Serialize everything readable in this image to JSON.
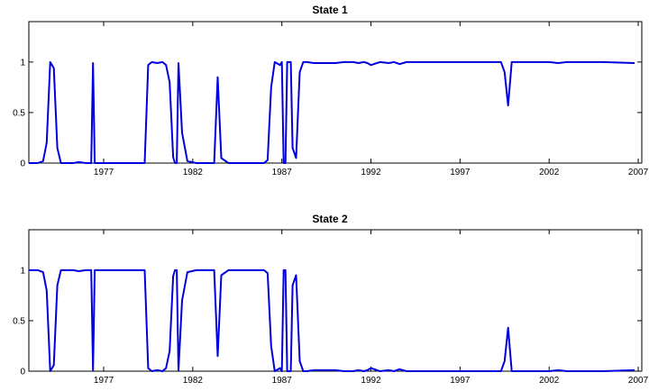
{
  "chart_data": [
    {
      "type": "line",
      "title": "State 1",
      "xlim": [
        1972.8,
        2007.2
      ],
      "ylim": [
        0,
        1.4
      ],
      "xticks": [
        1977,
        1982,
        1987,
        1992,
        1997,
        2002,
        2007
      ],
      "xtick_labels": [
        "1977",
        "1982",
        "1987",
        "1992",
        "1997",
        "2002",
        "2007"
      ],
      "yticks": [
        0,
        0.5,
        1
      ],
      "ytick_labels": [
        "0",
        "0.5",
        "1"
      ],
      "grid": false,
      "series": [
        {
          "color": "#0000dd",
          "x": [
            1972.8,
            1973.3,
            1973.6,
            1973.8,
            1974.0,
            1974.2,
            1974.4,
            1974.6,
            1974.9,
            1975.3,
            1975.6,
            1976.0,
            1976.3,
            1976.4,
            1976.5,
            1976.6,
            1977.0,
            1978.0,
            1979.3,
            1979.5,
            1979.7,
            1980.0,
            1980.3,
            1980.5,
            1980.7,
            1980.9,
            1981.0,
            1981.1,
            1981.2,
            1981.4,
            1981.7,
            1982.2,
            1982.6,
            1983.0,
            1983.2,
            1983.4,
            1983.6,
            1984.0,
            1985.0,
            1986.0,
            1986.2,
            1986.4,
            1986.6,
            1986.9,
            1987.0,
            1987.1,
            1987.2,
            1987.3,
            1987.5,
            1987.6,
            1987.8,
            1988.0,
            1988.2,
            1988.4,
            1988.8,
            1990.0,
            1990.5,
            1991.0,
            1991.3,
            1991.6,
            1991.8,
            1992.0,
            1992.5,
            1993.0,
            1993.3,
            1993.6,
            1994.0,
            1996.0,
            1998.0,
            1999.3,
            1999.5,
            1999.7,
            1999.9,
            2000.0,
            2001.0,
            2002.0,
            2002.5,
            2003.0,
            2005.0,
            2006.8
          ],
          "y": [
            0,
            0,
            0.02,
            0.2,
            1.0,
            0.94,
            0.15,
            0,
            0,
            0,
            0.01,
            0,
            0,
            0.99,
            0,
            0,
            0,
            0,
            0,
            0.97,
            1.0,
            0.99,
            1.0,
            0.97,
            0.8,
            0.06,
            0,
            0,
            0.99,
            0.3,
            0.02,
            0,
            0,
            0,
            0,
            0.85,
            0.05,
            0,
            0,
            0,
            0.03,
            0.75,
            1.0,
            0.97,
            1.0,
            0,
            0,
            1.0,
            1.0,
            0.15,
            0.05,
            0.9,
            1.0,
            1.0,
            0.99,
            0.99,
            1.0,
            1.0,
            0.99,
            1.0,
            0.99,
            0.97,
            1.0,
            0.99,
            1.0,
            0.98,
            1.0,
            1.0,
            1.0,
            1.0,
            0.9,
            0.57,
            1.0,
            1.0,
            1.0,
            1.0,
            0.99,
            1.0,
            1.0,
            0.99
          ]
        }
      ]
    },
    {
      "type": "line",
      "title": "State 2",
      "xlim": [
        1972.8,
        2007.2
      ],
      "ylim": [
        0,
        1.4
      ],
      "xticks": [
        1977,
        1982,
        1987,
        1992,
        1997,
        2002,
        2007
      ],
      "xtick_labels": [
        "1977",
        "1982",
        "1987",
        "1992",
        "1997",
        "2002",
        "2007"
      ],
      "yticks": [
        0,
        0.5,
        1
      ],
      "ytick_labels": [
        "0",
        "0.5",
        "1"
      ],
      "grid": false,
      "series": [
        {
          "color": "#0000dd",
          "x": [
            1972.8,
            1973.3,
            1973.6,
            1973.8,
            1974.0,
            1974.2,
            1974.4,
            1974.6,
            1974.9,
            1975.3,
            1975.6,
            1976.0,
            1976.3,
            1976.4,
            1976.5,
            1976.6,
            1977.0,
            1978.0,
            1979.3,
            1979.5,
            1979.7,
            1980.0,
            1980.3,
            1980.5,
            1980.7,
            1980.9,
            1981.0,
            1981.1,
            1981.2,
            1981.4,
            1981.7,
            1982.2,
            1982.6,
            1983.0,
            1983.2,
            1983.4,
            1983.6,
            1984.0,
            1985.0,
            1986.0,
            1986.2,
            1986.4,
            1986.6,
            1986.9,
            1987.0,
            1987.1,
            1987.2,
            1987.3,
            1987.5,
            1987.6,
            1987.8,
            1988.0,
            1988.2,
            1988.4,
            1988.8,
            1990.0,
            1990.5,
            1991.0,
            1991.3,
            1991.6,
            1991.8,
            1992.0,
            1992.5,
            1993.0,
            1993.3,
            1993.6,
            1994.0,
            1996.0,
            1998.0,
            1999.3,
            1999.5,
            1999.7,
            1999.9,
            2000.0,
            2001.0,
            2002.0,
            2002.5,
            2003.0,
            2005.0,
            2006.8
          ],
          "y": [
            1.0,
            1.0,
            0.98,
            0.8,
            0,
            0.06,
            0.85,
            1.0,
            1.0,
            1.0,
            0.99,
            1.0,
            1.0,
            0.01,
            1.0,
            1.0,
            1.0,
            1.0,
            1.0,
            0.03,
            0,
            0.01,
            0,
            0.03,
            0.2,
            0.94,
            1.0,
            1.0,
            0.01,
            0.7,
            0.98,
            1.0,
            1.0,
            1.0,
            1.0,
            0.15,
            0.95,
            1.0,
            1.0,
            1.0,
            0.97,
            0.25,
            0,
            0.03,
            0,
            1.0,
            1.0,
            0,
            0,
            0.85,
            0.95,
            0.1,
            0,
            0,
            0.01,
            0.01,
            0,
            0,
            0.01,
            0,
            0.01,
            0.03,
            0,
            0.01,
            0,
            0.02,
            0,
            0,
            0,
            0,
            0.1,
            0.43,
            0,
            0,
            0,
            0,
            0.01,
            0,
            0,
            0.01
          ]
        }
      ]
    }
  ]
}
